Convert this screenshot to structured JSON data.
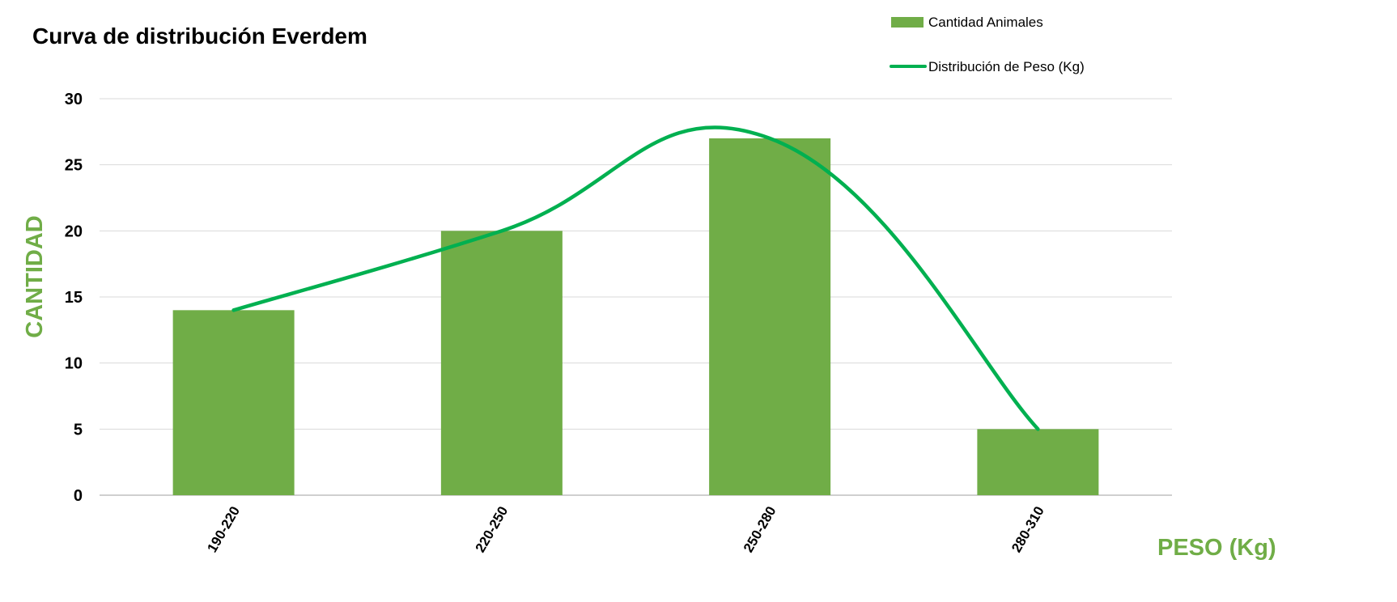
{
  "chart_data": {
    "type": "bar",
    "title": "Curva de distribución Everdem",
    "xlabel": "PESO (Kg)",
    "ylabel": "CANTIDAD",
    "categories": [
      "190-220",
      "220-250",
      "250-280",
      "280-310"
    ],
    "series": [
      {
        "name": "Cantidad Animales",
        "type": "bar",
        "values": [
          14,
          20,
          27,
          5
        ],
        "color": "#70AD47"
      },
      {
        "name": "Distribución de Peso (Kg)",
        "type": "line",
        "smooth": true,
        "values": [
          14,
          20,
          27,
          5
        ],
        "color": "#00B050"
      }
    ],
    "ylim": [
      0,
      30
    ],
    "yticks": [
      0,
      5,
      10,
      15,
      20,
      25,
      30
    ],
    "grid": true,
    "legend_position": "top-right",
    "colors": {
      "bar": "#70AD47",
      "line": "#00B050",
      "axis_title": "#70AD47",
      "gridline": "#D9D9D9"
    }
  }
}
